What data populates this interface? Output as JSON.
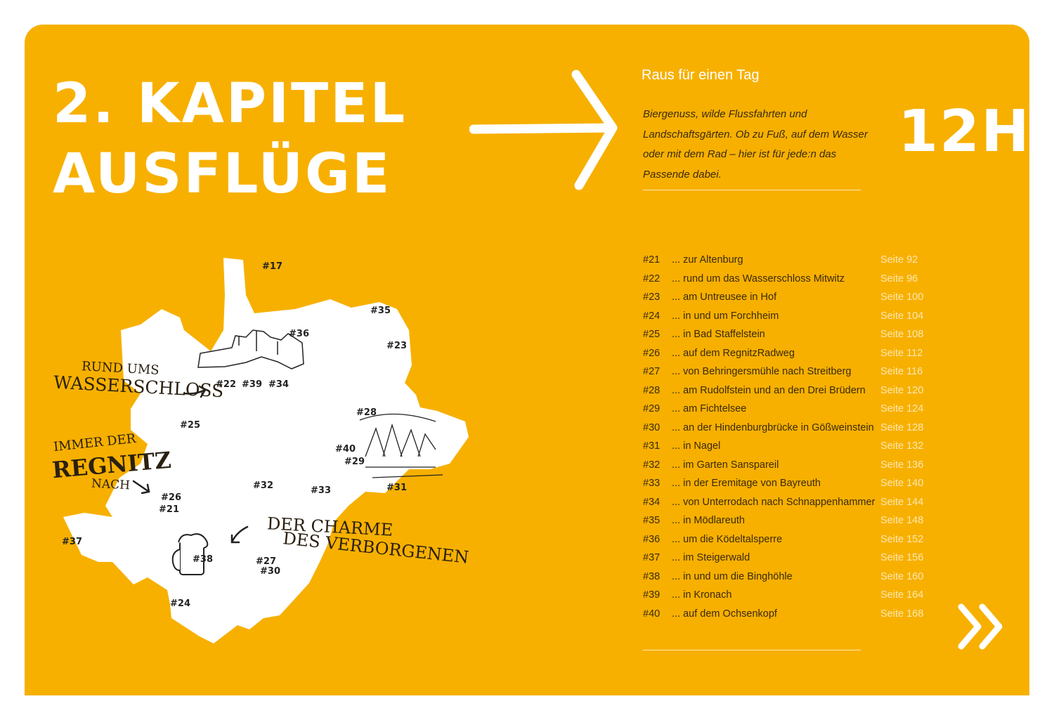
{
  "chapter": {
    "title_line1": "2. KAPITEL",
    "title_line2": "AUSFLÜGE"
  },
  "subtitle": "Raus für einen Tag",
  "intro": "Biergenuss, wilde Flussfahrten und Landschaftsgärten. Ob zu Fuß, auf dem Wasser oder mit dem Rad – hier ist für jede:n das Passende dabei.",
  "duration": "12H",
  "colors": {
    "background": "#f7b000",
    "text": "#3b2a0c",
    "page_numbers": "#fde7b0",
    "map": "#ffffff"
  },
  "toc": [
    {
      "num": "#21",
      "name": "... zur Altenburg",
      "page": "Seite  92"
    },
    {
      "num": "#22",
      "name": "... rund um das Wasserschloss Mitwitz",
      "page": "Seite  96"
    },
    {
      "num": "#23",
      "name": "... am Untreusee in Hof",
      "page": "Seite 100"
    },
    {
      "num": "#24",
      "name": "... in und um Forchheim",
      "page": "Seite 104"
    },
    {
      "num": "#25",
      "name": "... in Bad Staffelstein",
      "page": "Seite 108"
    },
    {
      "num": "#26",
      "name": "... auf dem RegnitzRadweg",
      "page": "Seite 112"
    },
    {
      "num": "#27",
      "name": "... von Behringersmühle nach Streitberg",
      "page": "Seite 116"
    },
    {
      "num": "#28",
      "name": "... am Rudolfstein und an den Drei Brüdern",
      "page": "Seite 120"
    },
    {
      "num": "#29",
      "name": "... am Fichtelsee",
      "page": "Seite 124"
    },
    {
      "num": "#30",
      "name": "... an der Hindenburgbrücke in Gößweinstein",
      "page": "Seite 128"
    },
    {
      "num": "#31",
      "name": "... in Nagel",
      "page": "Seite 132"
    },
    {
      "num": "#32",
      "name": "... im Garten Sanspareil",
      "page": "Seite 136"
    },
    {
      "num": "#33",
      "name": "... in der Eremitage von Bayreuth",
      "page": "Seite 140"
    },
    {
      "num": "#34",
      "name": "... von Unterrodach nach Schnappenhammer",
      "page": "Seite 144"
    },
    {
      "num": "#35",
      "name": "... in Mödlareuth",
      "page": "Seite 148"
    },
    {
      "num": "#36",
      "name": "... um die Ködeltalsperre",
      "page": "Seite 152"
    },
    {
      "num": "#37",
      "name": "... im Steigerwald",
      "page": "Seite 156"
    },
    {
      "num": "#38",
      "name": "... in und um die Binghöhle",
      "page": "Seite 160"
    },
    {
      "num": "#39",
      "name": "... in Kronach",
      "page": "Seite 164"
    },
    {
      "num": "#40",
      "name": "... auf dem Ochsenkopf",
      "page": "Seite 168"
    }
  ],
  "map": {
    "markers": [
      "#17",
      "#35",
      "#36",
      "#23",
      "#22",
      "#39",
      "#34",
      "#25",
      "#28",
      "#40",
      "#29",
      "#31",
      "#32",
      "#33",
      "#26",
      "#21",
      "#37",
      "#38",
      "#27",
      "#30",
      "#24"
    ],
    "callouts": {
      "wasserschloss_1": "RUND UMS",
      "wasserschloss_2": "WASSERSCHLOSS",
      "regnitz_1": "IMMER DER",
      "regnitz_2": "REGNITZ",
      "regnitz_3": "NACH",
      "charme_1": "DER CHARME",
      "charme_2": "DES VERBORGENEN"
    }
  },
  "next_icon": "double-chevron-right-icon"
}
